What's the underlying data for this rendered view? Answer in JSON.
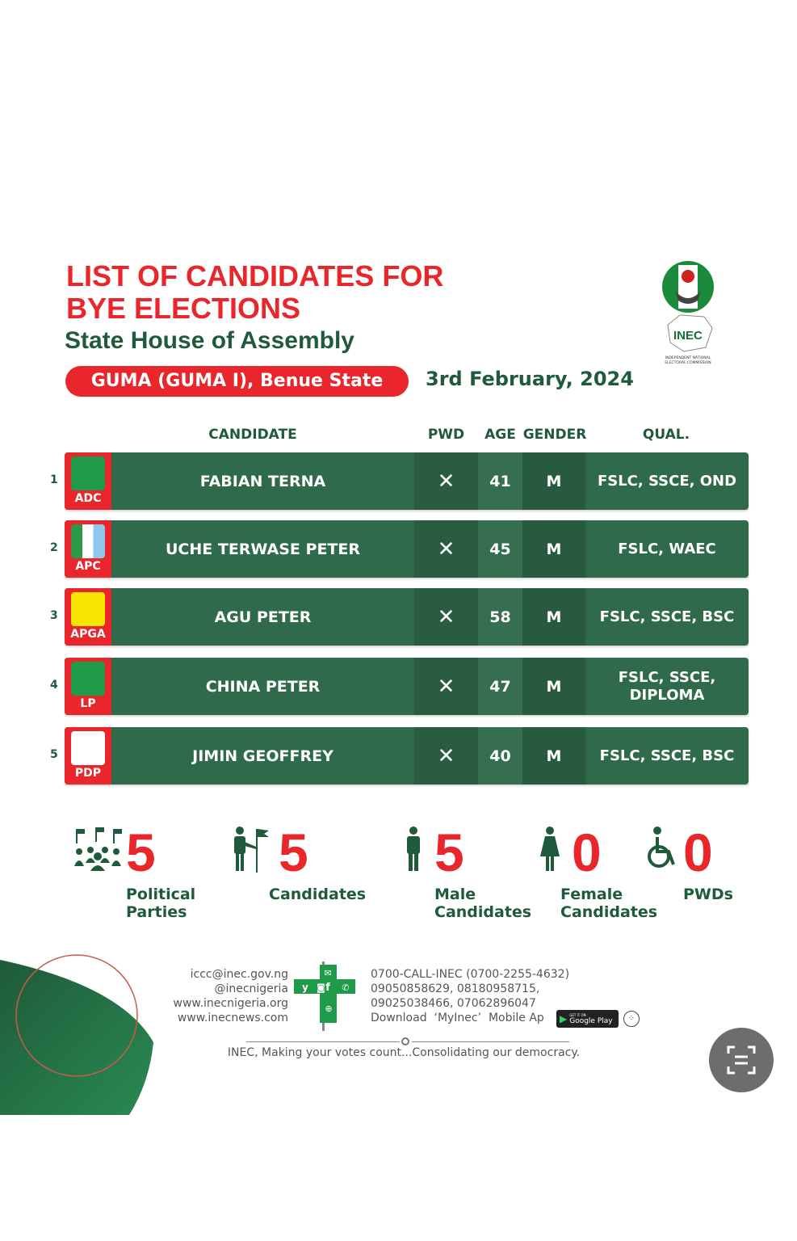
{
  "header": {
    "title_line1": "LIST OF CANDIDATES FOR",
    "title_line2": "BYE ELECTIONS",
    "subtitle": "State House of Assembly",
    "constituency": "GUMA (GUMA I), Benue State",
    "date": "3rd February, 2024"
  },
  "logo": {
    "text": "INEC",
    "caption": "INDEPENDENT NATIONAL ELECTORAL COMMISSION"
  },
  "columns": {
    "candidate": "CANDIDATE",
    "pwd": "PWD",
    "age": "AGE",
    "gender": "GENDER",
    "qual": "QUAL."
  },
  "rows": [
    {
      "num": "1",
      "party": "ADC",
      "name": "FABIAN TERNA",
      "pwd": "✕",
      "age": "41",
      "gender": "M",
      "qual": "FSLC, SSCE, OND"
    },
    {
      "num": "2",
      "party": "APC",
      "name": "UCHE TERWASE PETER",
      "pwd": "✕",
      "age": "45",
      "gender": "M",
      "qual": "FSLC, WAEC"
    },
    {
      "num": "3",
      "party": "APGA",
      "name": "AGU PETER",
      "pwd": "✕",
      "age": "58",
      "gender": "M",
      "qual": "FSLC, SSCE, BSC"
    },
    {
      "num": "4",
      "party": "LP",
      "name": "CHINA PETER",
      "pwd": "✕",
      "age": "47",
      "gender": "M",
      "qual": "FSLC, SSCE, DIPLOMA"
    },
    {
      "num": "5",
      "party": "PDP",
      "name": "JIMIN GEOFFREY",
      "pwd": "✕",
      "age": "40",
      "gender": "M",
      "qual": "FSLC, SSCE, BSC"
    }
  ],
  "stats": [
    {
      "value": "5",
      "label1": "Political",
      "label2": "Parties",
      "icon": "crowd-flags-icon"
    },
    {
      "value": "5",
      "label1": "Candidates",
      "label2": "",
      "icon": "person-flag-icon"
    },
    {
      "value": "5",
      "label1": "Male",
      "label2": "Candidates",
      "icon": "male-icon"
    },
    {
      "value": "0",
      "label1": "Female",
      "label2": "Candidates",
      "icon": "female-icon"
    },
    {
      "value": "0",
      "label1": "PWDs",
      "label2": "",
      "icon": "wheelchair-icon"
    }
  ],
  "footer": {
    "email": "iccc@inec.gov.ng",
    "handle": "@inecnigeria",
    "site1": "www.inecnigeria.org",
    "site2": "www.inecnews.com",
    "hotline": "0700-CALL-INEC (0700-2255-4632)",
    "phones1": "09050858629, 08180958715,",
    "phones2": "09025038466, 07062896047",
    "download": "Download  ‘MyInec’  Mobile Ap",
    "store": "Google Play",
    "store_small": "GET IT ON",
    "slogan": "INEC, Making your votes count...Consolidating our democracy."
  },
  "colors": {
    "red": "#e8262b",
    "green": "#2f6b4a",
    "dark_green": "#1f5a3a"
  }
}
